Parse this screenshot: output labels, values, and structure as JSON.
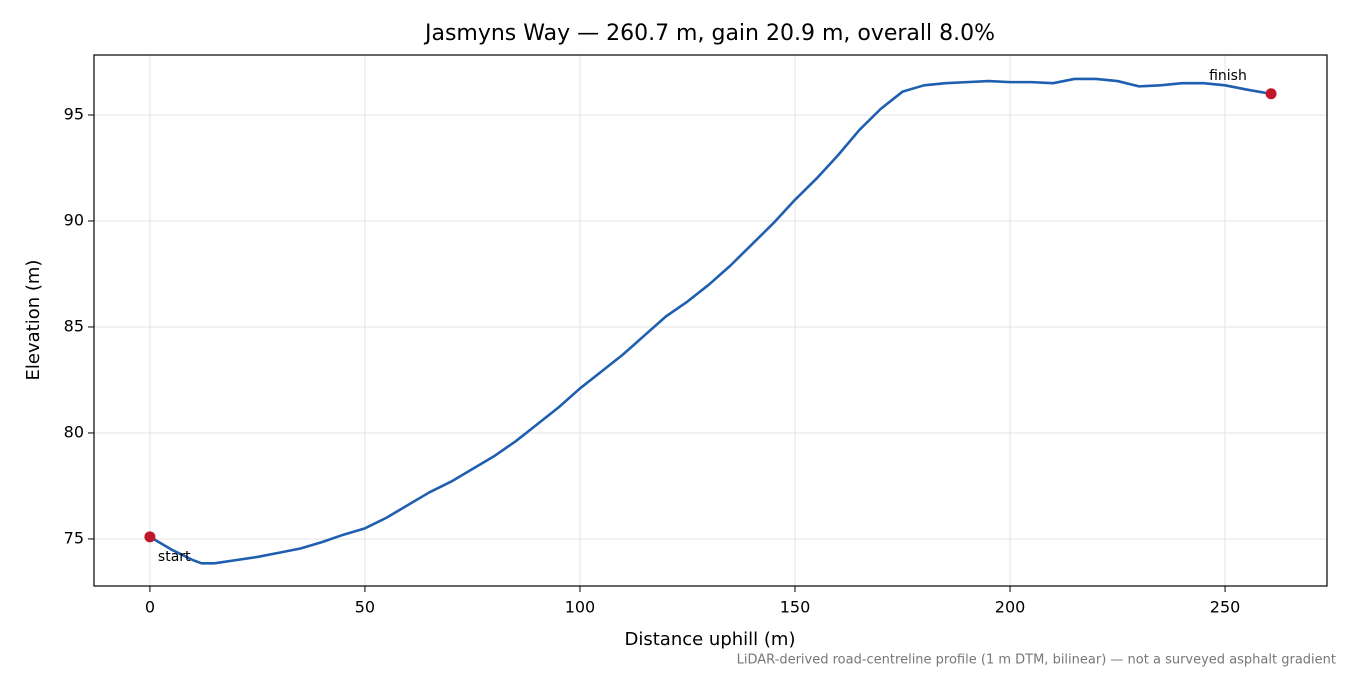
{
  "chart_data": {
    "type": "line",
    "title": "Jasmyns Way — 260.7 m, gain 20.9 m, overall 8.0%",
    "x_label": "Distance uphill (m)",
    "y_label": "Elevation (m)",
    "note": "LiDAR-derived road-centreline profile (1 m DTM, bilinear) — not a surveyed asphalt gradient",
    "x": [
      0,
      5,
      10,
      12,
      15,
      20,
      25,
      30,
      35,
      40,
      45,
      50,
      55,
      60,
      65,
      70,
      75,
      80,
      85,
      90,
      95,
      100,
      105,
      110,
      115,
      120,
      125,
      130,
      135,
      140,
      145,
      150,
      155,
      160,
      165,
      170,
      175,
      180,
      185,
      190,
      195,
      200,
      205,
      210,
      215,
      220,
      225,
      230,
      235,
      240,
      245,
      250,
      255,
      260.7
    ],
    "series": [
      {
        "name": "Elevation",
        "color": "#1f5fb0",
        "values": [
          75.1,
          74.5,
          74.0,
          73.85,
          73.85,
          74.0,
          74.15,
          74.35,
          74.55,
          74.85,
          75.2,
          75.5,
          76.0,
          76.6,
          77.2,
          77.7,
          78.3,
          78.9,
          79.6,
          80.4,
          81.2,
          82.1,
          82.9,
          83.7,
          84.6,
          85.5,
          86.2,
          87.0,
          87.9,
          88.9,
          89.9,
          91.0,
          92.0,
          93.1,
          94.3,
          95.3,
          96.1,
          96.4,
          96.5,
          96.55,
          96.6,
          96.55,
          96.55,
          96.5,
          96.7,
          96.7,
          96.6,
          96.35,
          96.4,
          96.5,
          96.5,
          96.4,
          96.2,
          96.0
        ]
      }
    ],
    "annotations": [
      {
        "text": "start"
      },
      {
        "text": "finish"
      }
    ],
    "marker_color": "#c0182a",
    "xlim": [
      -13,
      273.7
    ],
    "ylim": [
      72.78,
      97.83
    ],
    "xticks": [
      0,
      50,
      100,
      150,
      200,
      250
    ],
    "yticks": [
      75,
      80,
      85,
      90,
      95
    ],
    "grid": true
  }
}
